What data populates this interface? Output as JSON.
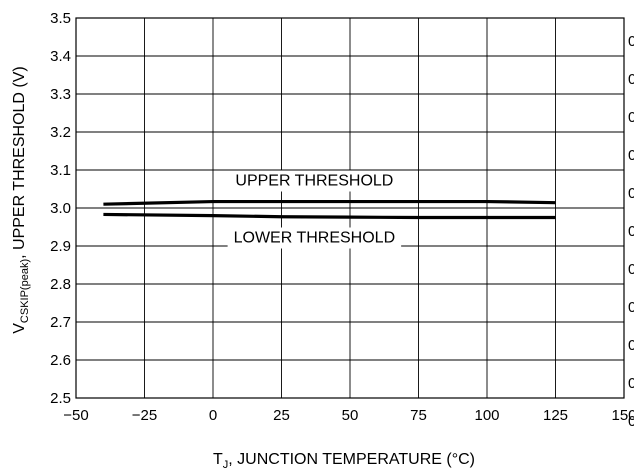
{
  "chart_data": {
    "type": "line",
    "title": "",
    "xlabel": {
      "main": "T",
      "sub": "J",
      "rest": ", JUNCTION TEMPERATURE (°C)"
    },
    "ylabel": {
      "main": "V",
      "sub": "CSKIP(peak)",
      "rest": ", UPPER THRESHOLD (V)"
    },
    "xlim": [
      -50,
      150
    ],
    "ylim": [
      2.5,
      3.5
    ],
    "xticks": [
      -50,
      -25,
      0,
      25,
      50,
      75,
      100,
      125,
      150
    ],
    "xtick_labels": [
      "−50",
      "−25",
      "0",
      "25",
      "50",
      "75",
      "100",
      "125",
      "150"
    ],
    "yticks": [
      2.5,
      2.6,
      2.7,
      2.8,
      2.9,
      3.0,
      3.1,
      3.2,
      3.3,
      3.4,
      3.5
    ],
    "ytick_labels": [
      "2.5",
      "2.6",
      "2.7",
      "2.8",
      "2.9",
      "3.0",
      "3.1",
      "3.2",
      "3.3",
      "3.4",
      "3.5"
    ],
    "grid": true,
    "legend": "none",
    "series": [
      {
        "name": "UPPER THRESHOLD",
        "x": [
          -40,
          0,
          25,
          50,
          75,
          100,
          125
        ],
        "y": [
          3.01,
          3.017,
          3.017,
          3.017,
          3.017,
          3.017,
          3.014
        ]
      },
      {
        "name": "LOWER THRESHOLD",
        "x": [
          -40,
          0,
          25,
          50,
          75,
          100,
          125
        ],
        "y": [
          2.983,
          2.98,
          2.977,
          2.976,
          2.975,
          2.975,
          2.975
        ]
      }
    ],
    "annotations": [
      {
        "text": "UPPER THRESHOLD",
        "x": 37,
        "y": 3.075
      },
      {
        "text": "LOWER THRESHOLD",
        "x": 37,
        "y": 2.925
      }
    ],
    "right_edge_marks": [
      "0",
      "0",
      "0",
      "0",
      "0",
      "0",
      "0",
      "0",
      "0",
      "0",
      "0"
    ],
    "colors": {
      "line": "#000000",
      "grid": "#000000",
      "background": "#ffffff"
    }
  }
}
